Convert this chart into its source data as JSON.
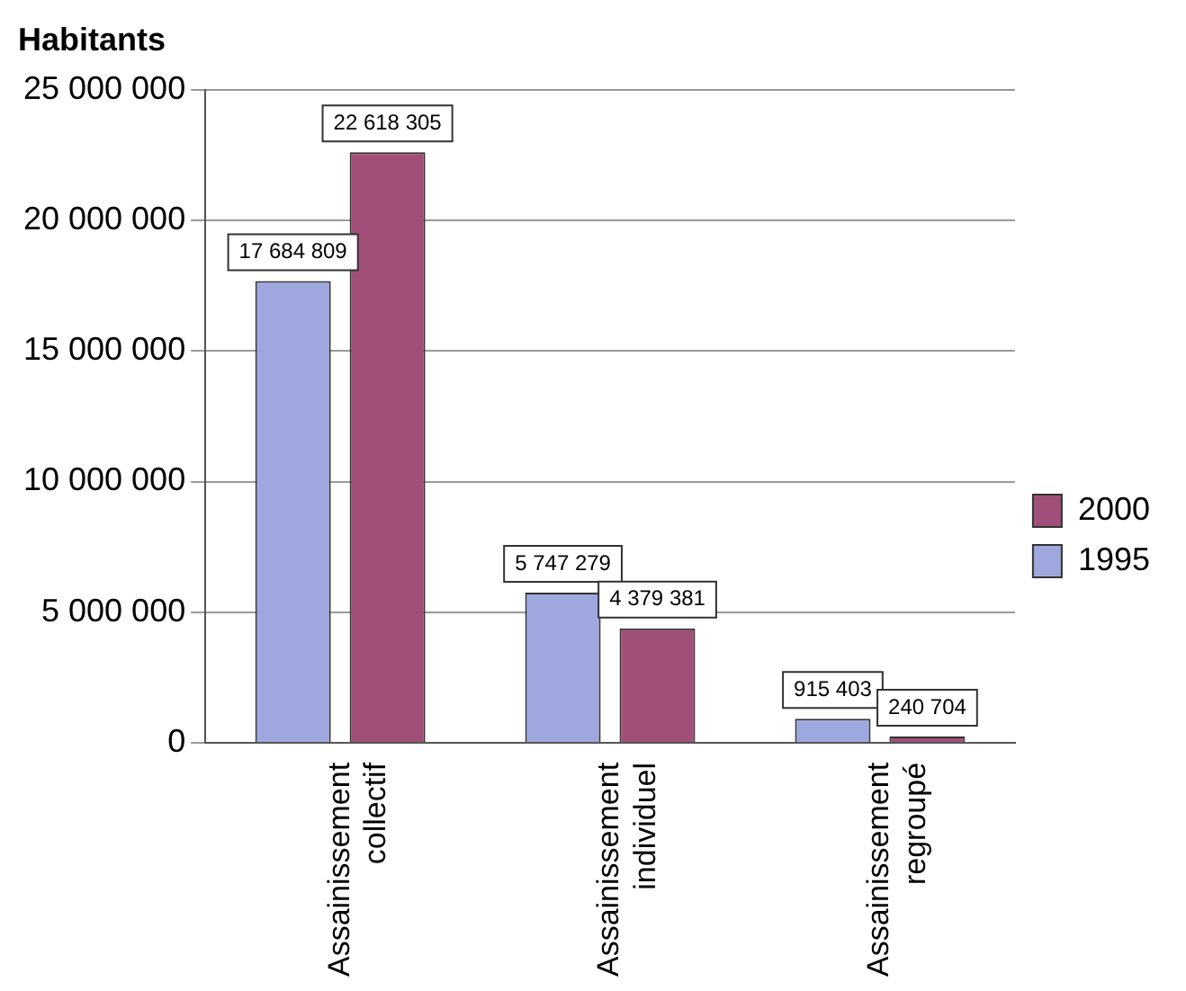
{
  "chart_data": {
    "type": "bar",
    "ylabel": "Habitants",
    "categories": [
      "Assainissement collectif",
      "Assainissement individuel",
      "Assainissement regroupé"
    ],
    "series": [
      {
        "name": "1995",
        "color": "#9fa7df",
        "values": [
          17684809,
          5747279,
          915403
        ],
        "value_labels": [
          "17 684 809",
          "5 747 279",
          "915 403"
        ]
      },
      {
        "name": "2000",
        "color": "#a14f79",
        "values": [
          22618305,
          4379381,
          240704
        ],
        "value_labels": [
          "22 618 305",
          "4 379 381",
          "240 704"
        ]
      }
    ],
    "ylim": [
      0,
      25000000
    ],
    "yticks": [
      {
        "value": 0,
        "label": "0"
      },
      {
        "value": 5000000,
        "label": "5 000 000"
      },
      {
        "value": 10000000,
        "label": "10 000 000"
      },
      {
        "value": 15000000,
        "label": "15 000 000"
      },
      {
        "value": 20000000,
        "label": "20 000 000"
      },
      {
        "value": 25000000,
        "label": "25 000 000"
      }
    ],
    "grid": "y",
    "legend": "right"
  }
}
